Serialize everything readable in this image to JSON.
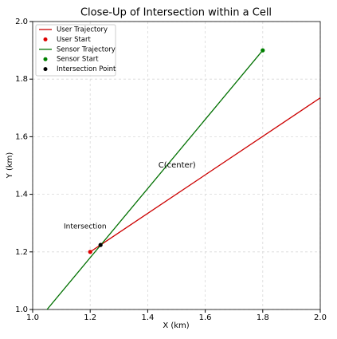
{
  "chart_data": {
    "type": "line",
    "title": "Close-Up of Intersection within a Cell",
    "x_label": "X (km)",
    "y_label": "Y (km)",
    "xlim": [
      1.0,
      2.0
    ],
    "ylim": [
      1.0,
      2.0
    ],
    "xticks": [
      {
        "value": 1.0,
        "label": "1.0"
      },
      {
        "value": 1.2,
        "label": "1.2"
      },
      {
        "value": 1.4,
        "label": "1.4"
      },
      {
        "value": 1.6,
        "label": "1.6"
      },
      {
        "value": 1.8,
        "label": "1.8"
      },
      {
        "value": 2.0,
        "label": "2.0"
      }
    ],
    "yticks": [
      {
        "value": 1.0,
        "label": "1.0"
      },
      {
        "value": 1.2,
        "label": "1.2"
      },
      {
        "value": 1.4,
        "label": "1.4"
      },
      {
        "value": 1.6,
        "label": "1.6"
      },
      {
        "value": 1.8,
        "label": "1.8"
      },
      {
        "value": 2.0,
        "label": "2.0"
      }
    ],
    "grid": true,
    "legend": "upper left",
    "series": [
      {
        "name": "User Trajectory",
        "kind": "line",
        "color": "#cc0000",
        "x": [
          1.2,
          2.0
        ],
        "y": [
          1.2,
          1.735
        ]
      },
      {
        "name": "User Start",
        "kind": "point",
        "color": "#dd0000",
        "x": [
          1.2
        ],
        "y": [
          1.2
        ]
      },
      {
        "name": "Sensor Trajectory",
        "kind": "line",
        "color": "#007000",
        "x": [
          1.05,
          1.8
        ],
        "y": [
          1.0,
          1.9
        ]
      },
      {
        "name": "Sensor Start",
        "kind": "point",
        "color": "#008000",
        "x": [
          1.8
        ],
        "y": [
          1.9
        ]
      },
      {
        "name": "Intersection Point",
        "kind": "point",
        "color": "#000000",
        "x": [
          1.236
        ],
        "y": [
          1.224
        ]
      }
    ],
    "annotations": [
      {
        "text": "Intersection",
        "x": 1.108,
        "y": 1.288,
        "color": "#000000"
      },
      {
        "text": "C(center)",
        "x": 1.437,
        "y": 1.501,
        "color": "#00008b"
      }
    ]
  }
}
